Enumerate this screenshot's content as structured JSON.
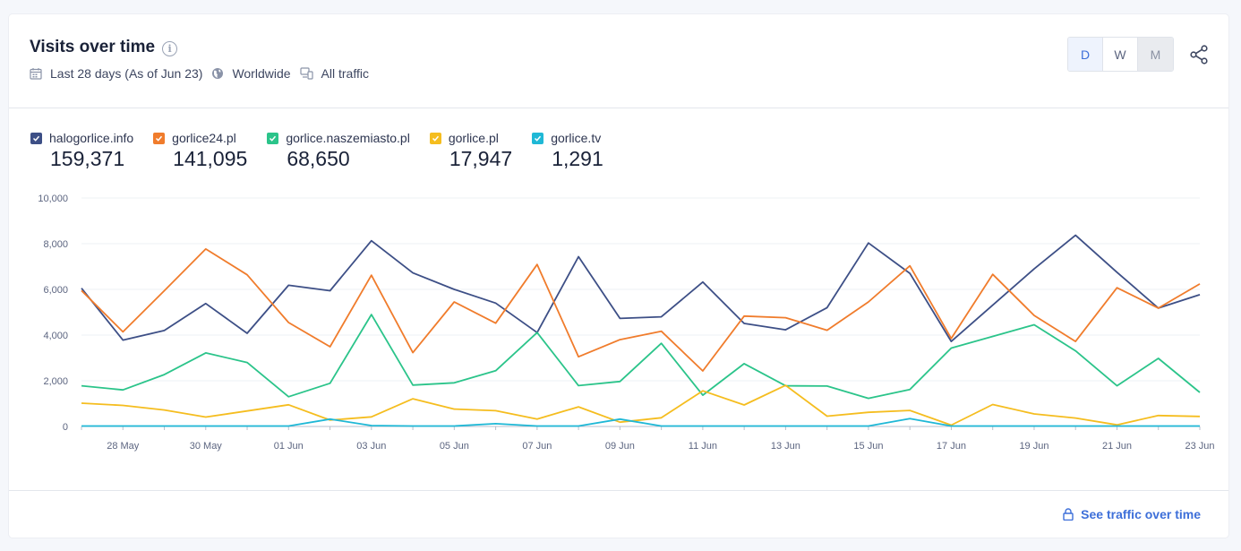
{
  "header": {
    "title": "Visits over time",
    "date_range": "Last 28 days (As of Jun 23)",
    "region": "Worldwide",
    "traffic": "All traffic"
  },
  "granularity": {
    "options": [
      "D",
      "W",
      "M"
    ],
    "selected": "D"
  },
  "footer": {
    "link_label": "See traffic over time"
  },
  "legend": [
    {
      "name": "halogorlice.info",
      "total": "159,371",
      "color": "#3d4f86"
    },
    {
      "name": "gorlice24.pl",
      "total": "141,095",
      "color": "#f07c2c"
    },
    {
      "name": "gorlice.naszemiasto.pl",
      "total": "68,650",
      "color": "#2bc48a"
    },
    {
      "name": "gorlice.pl",
      "total": "17,947",
      "color": "#f5bd1f"
    },
    {
      "name": "gorlice.tv",
      "total": "1,291",
      "color": "#1fb8d6"
    }
  ],
  "chart_data": {
    "type": "line",
    "x": [
      "27 May",
      "28 May",
      "29 May",
      "30 May",
      "31 May",
      "01 Jun",
      "02 Jun",
      "03 Jun",
      "04 Jun",
      "05 Jun",
      "06 Jun",
      "07 Jun",
      "08 Jun",
      "09 Jun",
      "10 Jun",
      "11 Jun",
      "12 Jun",
      "13 Jun",
      "14 Jun",
      "15 Jun",
      "16 Jun",
      "17 Jun",
      "18 Jun",
      "19 Jun",
      "20 Jun",
      "21 Jun",
      "22 Jun",
      "23 Jun"
    ],
    "x_tick_labels": [
      "28 May",
      "30 May",
      "01 Jun",
      "03 Jun",
      "05 Jun",
      "07 Jun",
      "09 Jun",
      "11 Jun",
      "13 Jun",
      "15 Jun",
      "17 Jun",
      "19 Jun",
      "21 Jun",
      "23 Jun"
    ],
    "y_ticks": [
      "0",
      "2,000",
      "4,000",
      "6,000",
      "8,000",
      "10,000"
    ],
    "ylim": [
      0,
      10000
    ],
    "grid": true,
    "legend_position": "top-left",
    "series": [
      {
        "name": "halogorlice.info",
        "color": "#3d4f86",
        "values": [
          6050,
          3780,
          4200,
          5380,
          4080,
          6180,
          5940,
          8130,
          6720,
          6000,
          5400,
          4110,
          7430,
          4730,
          4800,
          6320,
          4510,
          4230,
          5200,
          8030,
          6700,
          3720,
          5310,
          6900,
          8370,
          6750,
          5180,
          5770
        ]
      },
      {
        "name": "gorlice24.pl",
        "color": "#f07c2c",
        "values": [
          5950,
          4140,
          5940,
          7770,
          6640,
          4550,
          3490,
          6620,
          3230,
          5450,
          4520,
          7090,
          3050,
          3800,
          4170,
          2430,
          4830,
          4760,
          4210,
          5450,
          7030,
          3850,
          6660,
          4860,
          3720,
          6070,
          5180,
          6240
        ]
      },
      {
        "name": "gorlice.naszemiasto.pl",
        "color": "#2bc48a",
        "values": [
          1780,
          1600,
          2270,
          3220,
          2800,
          1300,
          1890,
          4900,
          1810,
          1910,
          2440,
          4110,
          1790,
          1970,
          3640,
          1370,
          2750,
          1780,
          1770,
          1230,
          1620,
          3430,
          3940,
          4450,
          3310,
          1780,
          2980,
          1490
        ]
      },
      {
        "name": "gorlice.pl",
        "color": "#f5bd1f",
        "values": [
          1020,
          920,
          720,
          410,
          680,
          950,
          280,
          420,
          1210,
          760,
          690,
          320,
          860,
          190,
          380,
          1560,
          940,
          1800,
          450,
          620,
          700,
          60,
          960,
          550,
          370,
          70,
          480,
          440
        ]
      },
      {
        "name": "gorlice.tv",
        "color": "#1fb8d6",
        "values": [
          20,
          20,
          20,
          20,
          20,
          20,
          320,
          40,
          20,
          20,
          120,
          20,
          20,
          320,
          20,
          20,
          20,
          20,
          20,
          20,
          340,
          20,
          20,
          20,
          20,
          20,
          20,
          20
        ]
      }
    ]
  }
}
